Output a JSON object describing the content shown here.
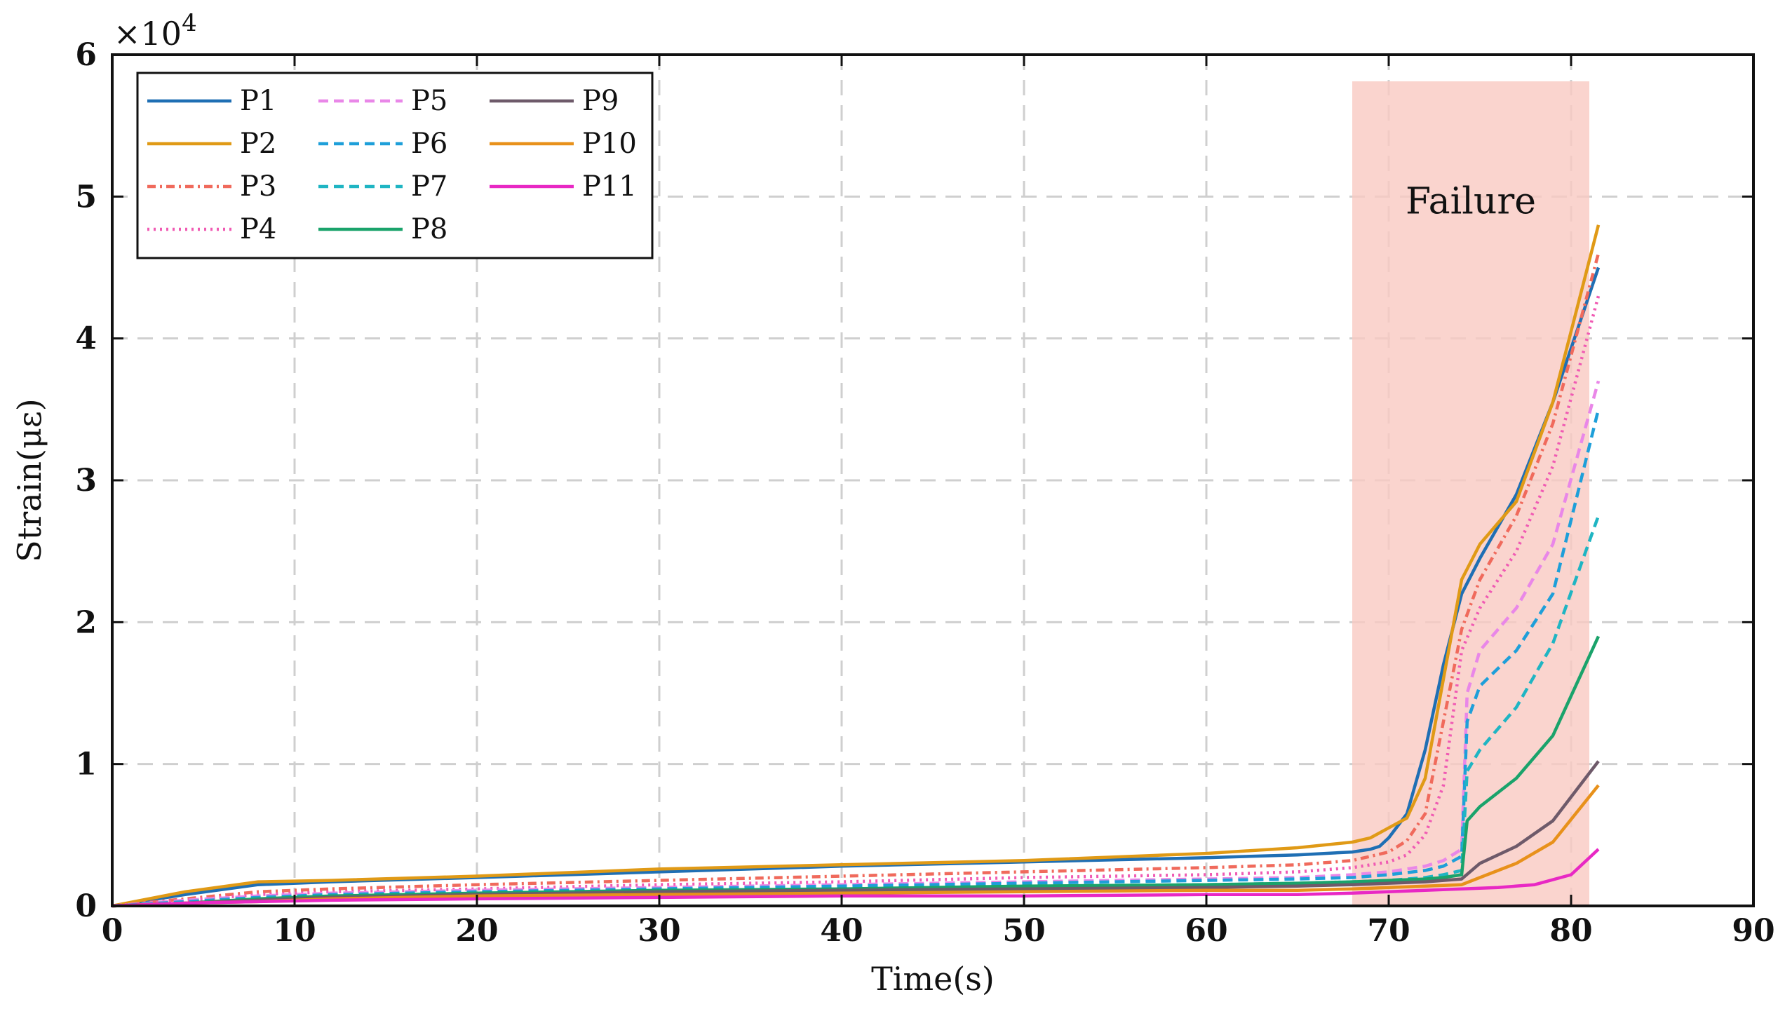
{
  "chart_data": {
    "type": "line",
    "title": "",
    "xlabel": "Time(s)",
    "ylabel": "Strain(με)",
    "y_multiplier": "×10",
    "y_multiplier_exp": "4",
    "xlim": [
      0,
      90
    ],
    "ylim": [
      0,
      6
    ],
    "xticks": [
      "0",
      "10",
      "20",
      "30",
      "40",
      "50",
      "60",
      "70",
      "80",
      "90"
    ],
    "yticks": [
      "0",
      "1",
      "2",
      "3",
      "4",
      "5",
      "6"
    ],
    "grid": true,
    "legend_position": "top-left",
    "annotation": {
      "text": "Failure",
      "x_start": 68,
      "x_end": 81,
      "color": "#f9c9c2"
    },
    "series": [
      {
        "name": "P1",
        "color": "#1f6fb4",
        "dash": "solid",
        "x": [
          0,
          4,
          8,
          12,
          20,
          30,
          40,
          50,
          60,
          65,
          68,
          69,
          69.5,
          70,
          71,
          72,
          73,
          74,
          75,
          77,
          79,
          81.5
        ],
        "y": [
          0,
          0.08,
          0.15,
          0.17,
          0.2,
          0.24,
          0.28,
          0.31,
          0.34,
          0.36,
          0.38,
          0.4,
          0.42,
          0.48,
          0.65,
          1.1,
          1.7,
          2.2,
          2.45,
          2.9,
          3.55,
          4.5
        ]
      },
      {
        "name": "P2",
        "color": "#e09a16",
        "dash": "solid",
        "x": [
          0,
          4,
          8,
          12,
          20,
          30,
          40,
          50,
          60,
          65,
          68,
          69,
          70,
          71,
          72,
          73,
          74,
          75,
          77,
          79,
          81.5
        ],
        "y": [
          0,
          0.1,
          0.17,
          0.18,
          0.21,
          0.26,
          0.29,
          0.32,
          0.37,
          0.41,
          0.45,
          0.48,
          0.55,
          0.62,
          0.9,
          1.6,
          2.3,
          2.55,
          2.85,
          3.55,
          4.8
        ]
      },
      {
        "name": "P3",
        "color": "#f06a5c",
        "dash": "12,6,3,6",
        "x": [
          0,
          4,
          8,
          12,
          20,
          30,
          40,
          50,
          60,
          65,
          68,
          70,
          71,
          72,
          73,
          74,
          75,
          77,
          79,
          81.5
        ],
        "y": [
          0,
          0.05,
          0.1,
          0.12,
          0.15,
          0.18,
          0.21,
          0.24,
          0.27,
          0.29,
          0.32,
          0.38,
          0.46,
          0.65,
          1.3,
          1.95,
          2.3,
          2.75,
          3.4,
          4.6
        ]
      },
      {
        "name": "P4",
        "color": "#f05ab3",
        "dash": "3,6",
        "x": [
          0,
          4,
          8,
          12,
          20,
          30,
          40,
          50,
          60,
          65,
          68,
          70,
          71,
          72,
          73,
          74,
          75,
          77,
          79,
          81.5
        ],
        "y": [
          0,
          0.04,
          0.08,
          0.1,
          0.12,
          0.15,
          0.17,
          0.2,
          0.22,
          0.24,
          0.27,
          0.31,
          0.36,
          0.5,
          0.85,
          1.8,
          2.1,
          2.5,
          3.1,
          4.3
        ]
      },
      {
        "name": "P5",
        "color": "#e987e8",
        "dash": "14,8",
        "x": [
          0,
          4,
          8,
          12,
          20,
          30,
          40,
          50,
          60,
          65,
          68,
          70,
          72,
          73,
          74,
          74.3,
          75,
          77,
          79,
          81.5
        ],
        "y": [
          0,
          0.04,
          0.07,
          0.09,
          0.11,
          0.13,
          0.15,
          0.17,
          0.19,
          0.2,
          0.22,
          0.24,
          0.28,
          0.32,
          0.4,
          1.5,
          1.8,
          2.1,
          2.55,
          3.7
        ]
      },
      {
        "name": "P6",
        "color": "#1e9fd9",
        "dash": "14,8",
        "x": [
          0,
          4,
          8,
          12,
          20,
          30,
          40,
          50,
          60,
          65,
          68,
          70,
          72,
          73,
          74,
          74.3,
          75,
          77,
          79,
          81.5
        ],
        "y": [
          0,
          0.03,
          0.06,
          0.08,
          0.1,
          0.12,
          0.14,
          0.16,
          0.18,
          0.19,
          0.2,
          0.22,
          0.25,
          0.28,
          0.35,
          1.3,
          1.55,
          1.8,
          2.2,
          3.5
        ]
      },
      {
        "name": "P7",
        "color": "#1fb5c3",
        "dash": "14,8",
        "x": [
          0,
          4,
          8,
          12,
          20,
          30,
          40,
          50,
          60,
          65,
          68,
          70,
          72,
          73,
          74,
          74.3,
          75,
          77,
          79,
          81.5
        ],
        "y": [
          0,
          0.02,
          0.05,
          0.07,
          0.09,
          0.11,
          0.12,
          0.14,
          0.15,
          0.16,
          0.17,
          0.18,
          0.2,
          0.22,
          0.25,
          0.95,
          1.1,
          1.4,
          1.85,
          2.75
        ]
      },
      {
        "name": "P8",
        "color": "#1aa36b",
        "dash": "solid",
        "x": [
          0,
          4,
          8,
          12,
          20,
          30,
          40,
          50,
          60,
          65,
          68,
          70,
          72,
          73,
          74,
          74.3,
          75,
          77,
          79,
          81.5
        ],
        "y": [
          0,
          0.02,
          0.05,
          0.07,
          0.09,
          0.11,
          0.12,
          0.14,
          0.15,
          0.16,
          0.17,
          0.18,
          0.19,
          0.2,
          0.22,
          0.6,
          0.7,
          0.9,
          1.2,
          1.9
        ]
      },
      {
        "name": "P9",
        "color": "#6e5a6a",
        "dash": "solid",
        "x": [
          0,
          4,
          8,
          12,
          20,
          30,
          40,
          50,
          60,
          65,
          68,
          70,
          72,
          73,
          74,
          75,
          77,
          79,
          81.5
        ],
        "y": [
          0,
          0.02,
          0.04,
          0.06,
          0.08,
          0.1,
          0.11,
          0.12,
          0.13,
          0.14,
          0.15,
          0.16,
          0.17,
          0.18,
          0.19,
          0.3,
          0.42,
          0.6,
          1.02
        ]
      },
      {
        "name": "P10",
        "color": "#e8911b",
        "dash": "solid",
        "x": [
          0,
          4,
          8,
          12,
          20,
          30,
          40,
          50,
          60,
          65,
          68,
          70,
          72,
          74,
          75,
          77,
          79,
          81.5
        ],
        "y": [
          0,
          0.02,
          0.03,
          0.05,
          0.07,
          0.08,
          0.09,
          0.1,
          0.11,
          0.11,
          0.12,
          0.13,
          0.14,
          0.15,
          0.2,
          0.3,
          0.45,
          0.85
        ]
      },
      {
        "name": "P11",
        "color": "#e828c4",
        "dash": "solid",
        "x": [
          0,
          4,
          8,
          12,
          20,
          30,
          40,
          50,
          60,
          65,
          68,
          70,
          72,
          74,
          76,
          78,
          80,
          81.5
        ],
        "y": [
          0,
          0.02,
          0.03,
          0.04,
          0.05,
          0.06,
          0.07,
          0.07,
          0.08,
          0.08,
          0.09,
          0.1,
          0.11,
          0.12,
          0.13,
          0.15,
          0.22,
          0.4
        ]
      }
    ]
  }
}
